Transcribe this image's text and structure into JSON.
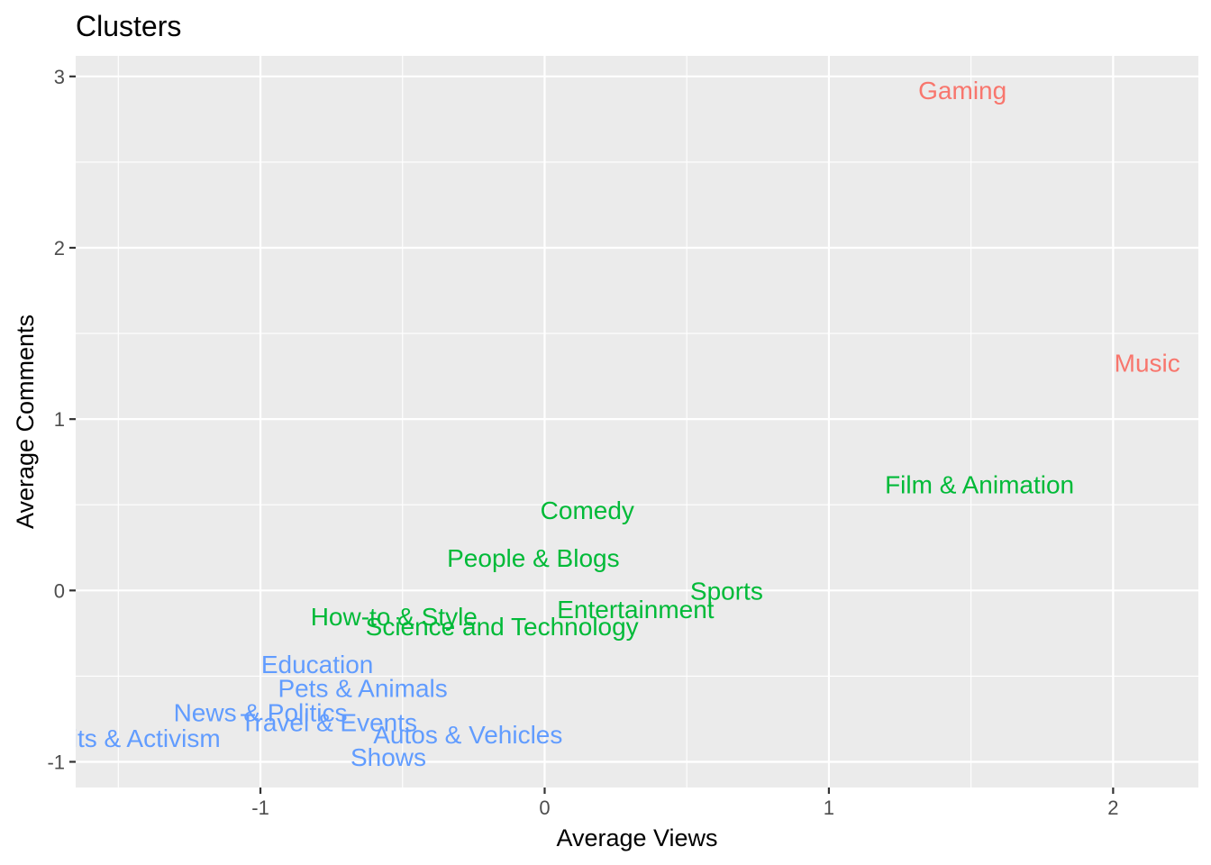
{
  "chart_data": {
    "type": "scatter",
    "title": "Clusters",
    "xlabel": "Average Views",
    "ylabel": "Average Comments",
    "xlim": [
      -1.65,
      2.3
    ],
    "ylim": [
      -1.15,
      3.12
    ],
    "x_ticks": [
      -1,
      0,
      1,
      2
    ],
    "y_ticks": [
      -1,
      0,
      1,
      2,
      3
    ],
    "x_tick_labels": [
      "-1",
      "0",
      "1",
      "2"
    ],
    "y_tick_labels": [
      "-1",
      "0",
      "1",
      "2",
      "3"
    ],
    "grid": true,
    "legend": "none",
    "clusters": {
      "1": "#F8766D",
      "2": "#00BA38",
      "3": "#619CFF"
    },
    "points": [
      {
        "label": "Gaming",
        "x": 1.47,
        "y": 2.92,
        "cluster": "1"
      },
      {
        "label": "Music",
        "x": 2.12,
        "y": 1.33,
        "cluster": "1"
      },
      {
        "label": "Film & Animation",
        "x": 1.53,
        "y": 0.62,
        "cluster": "2"
      },
      {
        "label": "Comedy",
        "x": 0.15,
        "y": 0.47,
        "cluster": "2"
      },
      {
        "label": "People & Blogs",
        "x": -0.04,
        "y": 0.19,
        "cluster": "2"
      },
      {
        "label": "Sports",
        "x": 0.64,
        "y": 0.0,
        "cluster": "2"
      },
      {
        "label": "Entertainment",
        "x": 0.32,
        "y": -0.11,
        "cluster": "2"
      },
      {
        "label": "How-to & Style",
        "x": -0.53,
        "y": -0.15,
        "cluster": "2"
      },
      {
        "label": "Science and Technology",
        "x": -0.15,
        "y": -0.21,
        "cluster": "2"
      },
      {
        "label": "Education",
        "x": -0.8,
        "y": -0.43,
        "cluster": "3"
      },
      {
        "label": "Pets & Animals",
        "x": -0.64,
        "y": -0.57,
        "cluster": "3"
      },
      {
        "label": "News & Politics",
        "x": -1.0,
        "y": -0.71,
        "cluster": "3"
      },
      {
        "label": "Travel & Events",
        "x": -0.76,
        "y": -0.77,
        "cluster": "3"
      },
      {
        "label": "Autos & Vehicles",
        "x": -0.27,
        "y": -0.84,
        "cluster": "3"
      },
      {
        "label": "Nonprofits & Activism",
        "x": -1.56,
        "y": -0.86,
        "cluster": "3"
      },
      {
        "label": "Shows",
        "x": -0.55,
        "y": -0.97,
        "cluster": "3"
      }
    ]
  }
}
